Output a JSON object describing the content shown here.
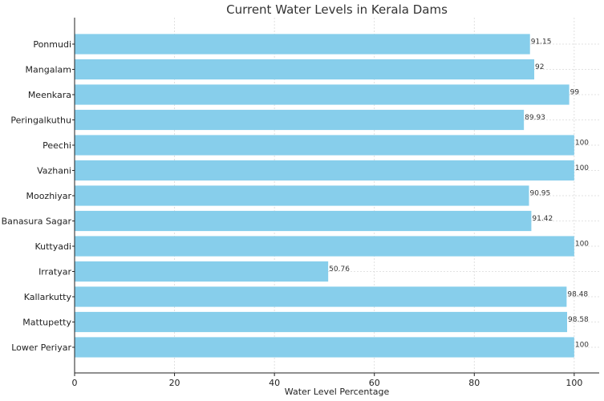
{
  "chart_data": {
    "type": "bar",
    "orientation": "horizontal",
    "title": "Current Water Levels in Kerala Dams",
    "xlabel": "Water Level Percentage",
    "ylabel": "",
    "xlim": [
      0,
      105
    ],
    "xticks": [
      0,
      20,
      40,
      60,
      80,
      100
    ],
    "grid": true,
    "bar_color": "#87CEEB",
    "categories": [
      "Ponmudi",
      "Mangalam",
      "Meenkara",
      "Peringalkuthu",
      "Peechi",
      "Vazhani",
      "Moozhiyar",
      "Banasura Sagar",
      "Kuttyadi",
      "Irratyar",
      "Kallarkutty",
      "Mattupetty",
      "Lower Periyar"
    ],
    "values": [
      91.15,
      92,
      99,
      89.93,
      100,
      100,
      90.95,
      91.42,
      100,
      50.76,
      98.48,
      98.58,
      100
    ],
    "value_labels": [
      "91.15",
      "92",
      "99",
      "89.93",
      "100",
      "100",
      "90.95",
      "91.42",
      "100",
      "50.76",
      "98.48",
      "98.58",
      "100"
    ]
  }
}
